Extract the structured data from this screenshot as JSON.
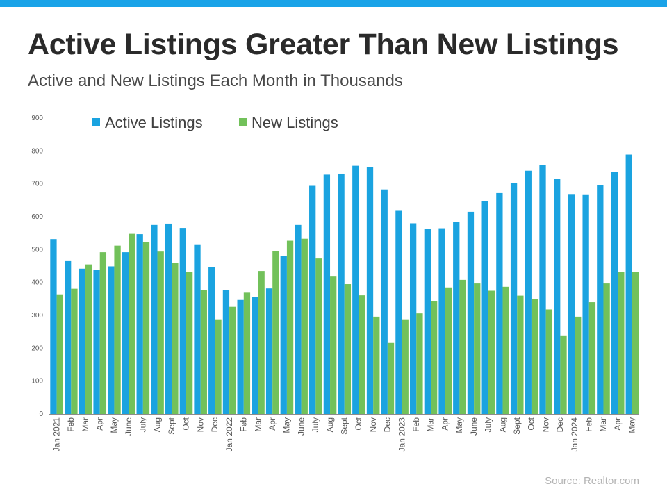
{
  "header": {
    "title": "Active Listings Greater Than New Listings",
    "subtitle": "Active and New Listings Each Month in Thousands"
  },
  "footer": {
    "source": "Source: Realtor.com"
  },
  "colors": {
    "accent_bar": "#1aa3e8",
    "active": "#1aa3e0",
    "new": "#72c15a"
  },
  "chart_data": {
    "type": "bar",
    "title": "Active Listings Greater Than New Listings",
    "subtitle": "Active and New Listings Each Month in Thousands",
    "xlabel": "",
    "ylabel": "",
    "ylim": [
      0,
      900
    ],
    "yticks": [
      0,
      100,
      200,
      300,
      400,
      500,
      600,
      700,
      800,
      900
    ],
    "grid": false,
    "legend_position": "top-left",
    "categories": [
      "Jan 2021",
      "Feb",
      "Mar",
      "Apr",
      "May",
      "June",
      "July",
      "Aug",
      "Sept",
      "Oct",
      "Nov",
      "Dec",
      "Jan 2022",
      "Feb",
      "Mar",
      "Apr",
      "May",
      "June",
      "July",
      "Aug",
      "Sept",
      "Oct",
      "Nov",
      "Dec",
      "Jan 2023",
      "Feb",
      "Mar",
      "Apr",
      "May",
      "June",
      "July",
      "Aug",
      "Sept",
      "Oct",
      "Nov",
      "Dec",
      "Jan 2024",
      "Feb",
      "Mar",
      "Apr",
      "May"
    ],
    "series": [
      {
        "name": "Active Listings",
        "color": "#1aa3e0",
        "values": [
          532,
          465,
          442,
          438,
          449,
          492,
          547,
          575,
          579,
          566,
          514,
          446,
          378,
          347,
          356,
          382,
          481,
          575,
          694,
          728,
          731,
          755,
          751,
          683,
          618,
          580,
          563,
          565,
          584,
          615,
          648,
          672,
          702,
          740,
          757,
          715,
          667,
          666,
          697,
          737,
          789
        ]
      },
      {
        "name": "New Listings",
        "color": "#72c15a",
        "values": [
          364,
          381,
          455,
          492,
          512,
          548,
          522,
          494,
          459,
          432,
          377,
          288,
          326,
          369,
          435,
          496,
          527,
          533,
          473,
          418,
          395,
          361,
          296,
          216,
          288,
          306,
          343,
          385,
          408,
          397,
          375,
          387,
          360,
          349,
          318,
          237,
          296,
          340,
          397,
          433,
          433
        ]
      }
    ]
  }
}
